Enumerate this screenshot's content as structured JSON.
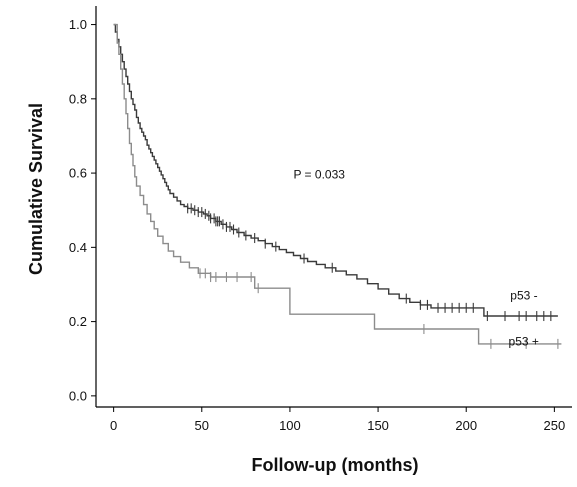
{
  "chart_data": {
    "type": "line",
    "title": "",
    "xlabel": "Follow-up (months)",
    "ylabel": "Cumulative Survival",
    "xlim": [
      -10,
      260
    ],
    "ylim": [
      -0.03,
      1.05
    ],
    "xticks": [
      0,
      50,
      100,
      150,
      200,
      250
    ],
    "xtick_labels": [
      "0",
      "50",
      "100",
      "150",
      "200",
      "250"
    ],
    "yticks": [
      0.0,
      0.2,
      0.4,
      0.6,
      0.8,
      1.0
    ],
    "ytick_labels": [
      "0.0",
      "0.2",
      "0.4",
      "0.6",
      "0.8",
      "1.0"
    ],
    "grid": false,
    "annotations": [
      {
        "text": "P = 0.033",
        "x": 102,
        "y": 0.585
      }
    ],
    "series": [
      {
        "name": "p53 -",
        "color": "#3a3a3a",
        "label_at": {
          "x": 225,
          "y": 0.26
        },
        "steps": [
          [
            1,
            0.98
          ],
          [
            2,
            0.96
          ],
          [
            3,
            0.94
          ],
          [
            4,
            0.92
          ],
          [
            5,
            0.9
          ],
          [
            6,
            0.88
          ],
          [
            7,
            0.86
          ],
          [
            8,
            0.84
          ],
          [
            9,
            0.82
          ],
          [
            10,
            0.8
          ],
          [
            11,
            0.785
          ],
          [
            12,
            0.77
          ],
          [
            13,
            0.75
          ],
          [
            14,
            0.735
          ],
          [
            15,
            0.72
          ],
          [
            16,
            0.71
          ],
          [
            17,
            0.7
          ],
          [
            18,
            0.69
          ],
          [
            19,
            0.675
          ],
          [
            20,
            0.665
          ],
          [
            21,
            0.655
          ],
          [
            22,
            0.645
          ],
          [
            23,
            0.635
          ],
          [
            24,
            0.625
          ],
          [
            25,
            0.615
          ],
          [
            26,
            0.605
          ],
          [
            27,
            0.595
          ],
          [
            28,
            0.585
          ],
          [
            29,
            0.575
          ],
          [
            30,
            0.565
          ],
          [
            31,
            0.555
          ],
          [
            32,
            0.545
          ],
          [
            34,
            0.535
          ],
          [
            36,
            0.525
          ],
          [
            38,
            0.515
          ],
          [
            40,
            0.51
          ],
          [
            42,
            0.505
          ],
          [
            45,
            0.5
          ],
          [
            48,
            0.495
          ],
          [
            51,
            0.49
          ],
          [
            53,
            0.485
          ],
          [
            55,
            0.478
          ],
          [
            58,
            0.47
          ],
          [
            61,
            0.462
          ],
          [
            64,
            0.455
          ],
          [
            67,
            0.448
          ],
          [
            70,
            0.44
          ],
          [
            74,
            0.432
          ],
          [
            78,
            0.425
          ],
          [
            82,
            0.418
          ],
          [
            86,
            0.41
          ],
          [
            90,
            0.402
          ],
          [
            94,
            0.394
          ],
          [
            98,
            0.386
          ],
          [
            102,
            0.378
          ],
          [
            106,
            0.37
          ],
          [
            110,
            0.362
          ],
          [
            115,
            0.354
          ],
          [
            120,
            0.345
          ],
          [
            126,
            0.336
          ],
          [
            132,
            0.326
          ],
          [
            138,
            0.315
          ],
          [
            144,
            0.302
          ],
          [
            150,
            0.288
          ],
          [
            156,
            0.274
          ],
          [
            162,
            0.262
          ],
          [
            168,
            0.252
          ],
          [
            174,
            0.245
          ],
          [
            180,
            0.237
          ],
          [
            210,
            0.215
          ]
        ],
        "end_x": 252,
        "censored_x": [
          42,
          44,
          46,
          48,
          50,
          52,
          54,
          55,
          57,
          58,
          59,
          60,
          62,
          64,
          66,
          68,
          71,
          75,
          80,
          86,
          92,
          108,
          124,
          166,
          174,
          178,
          184,
          188,
          192,
          196,
          200,
          204,
          212,
          222,
          230,
          234,
          240,
          244,
          248
        ]
      },
      {
        "name": "p53 +",
        "color": "#8c8c8c",
        "label_at": {
          "x": 224,
          "y": 0.135
        },
        "steps": [
          [
            2,
            0.95
          ],
          [
            3,
            0.92
          ],
          [
            4,
            0.88
          ],
          [
            5,
            0.84
          ],
          [
            6,
            0.8
          ],
          [
            7,
            0.76
          ],
          [
            8,
            0.72
          ],
          [
            9,
            0.68
          ],
          [
            10,
            0.65
          ],
          [
            11,
            0.62
          ],
          [
            12,
            0.59
          ],
          [
            13,
            0.565
          ],
          [
            15,
            0.54
          ],
          [
            17,
            0.515
          ],
          [
            19,
            0.49
          ],
          [
            21,
            0.47
          ],
          [
            23,
            0.45
          ],
          [
            25,
            0.43
          ],
          [
            28,
            0.41
          ],
          [
            31,
            0.39
          ],
          [
            34,
            0.375
          ],
          [
            38,
            0.36
          ],
          [
            43,
            0.345
          ],
          [
            48,
            0.33
          ],
          [
            55,
            0.32
          ],
          [
            80,
            0.29
          ],
          [
            100,
            0.22
          ],
          [
            148,
            0.18
          ],
          [
            207,
            0.14
          ]
        ],
        "end_x": 254,
        "censored_x": [
          49,
          52,
          55,
          58,
          64,
          70,
          78,
          82,
          176,
          214,
          234,
          252
        ]
      }
    ]
  }
}
